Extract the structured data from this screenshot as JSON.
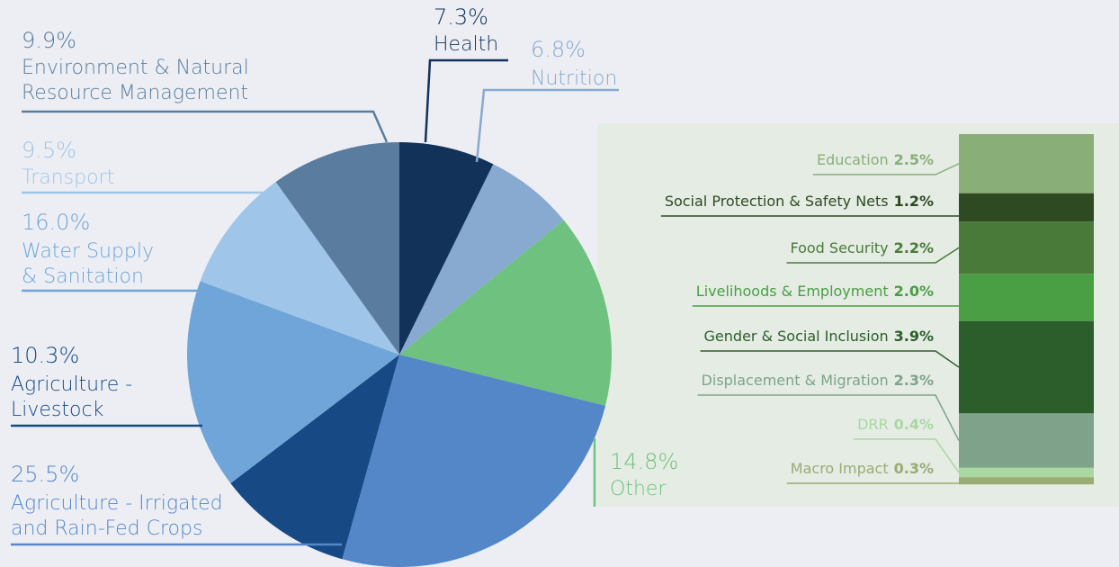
{
  "chart_data": [
    {
      "type": "pie",
      "categories": [
        "Health",
        "Nutrition",
        "Other",
        "Agriculture - Irrigated\nand Rain-Fed Crops",
        "Agriculture -\nLivestock",
        "Water Supply\n& Sanitation",
        "Transport",
        "Environment & Natural\nResource Management"
      ],
      "values": [
        7.3,
        6.8,
        14.8,
        25.5,
        10.3,
        16.0,
        9.5,
        9.9
      ],
      "value_labels": [
        "7.3%",
        "6.8%",
        "14.8%",
        "25.5%",
        "10.3%",
        "16.0%",
        "9.5%",
        "9.9%"
      ],
      "colors": [
        "#12325a",
        "#88a9d0",
        "#6fc17f",
        "#5487c8",
        "#174a85",
        "#6fa5d9",
        "#9fc5e8",
        "#5a7d9f"
      ]
    },
    {
      "type": "stacked-bar",
      "categories": [
        "Education",
        "Social Protection & Safety Nets",
        "Food Security",
        "Livelihoods & Employment",
        "Gender & Social Inclusion",
        "Displacement & Migration",
        "DRR",
        "Macro Impact"
      ],
      "values": [
        2.5,
        1.2,
        2.2,
        2.0,
        3.9,
        2.3,
        0.4,
        0.3
      ],
      "value_labels": [
        "2.5%",
        "1.2%",
        "2.2%",
        "2.0%",
        "3.9%",
        "2.3%",
        "0.4%",
        "0.3%"
      ],
      "colors": [
        "#8aae78",
        "#2e4a22",
        "#4a7a3a",
        "#4a9e44",
        "#2c5e2b",
        "#7ea38a",
        "#a8d8a0",
        "#9aab74"
      ]
    }
  ]
}
